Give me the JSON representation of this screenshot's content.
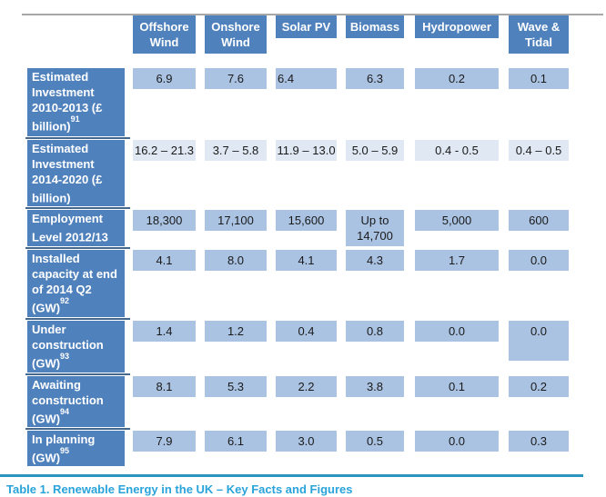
{
  "table": {
    "columns": [
      "Offshore Wind",
      "Onshore Wind",
      "Solar PV",
      "Biomass",
      "Hydropower",
      "Wave & Tidal"
    ],
    "rows": [
      {
        "label": "Estimated Investment 2010-2013 (£ billion)",
        "sup": "91",
        "values": [
          "6.9",
          "7.6",
          "6.4",
          "6.3",
          "0.2",
          "0.1"
        ]
      },
      {
        "label": "Estimated Investment 2014-2020 (£ billion)",
        "sup": "",
        "values": [
          "16.2 – 21.3",
          "3.7 – 5.8",
          "11.9 – 13.0",
          "5.0 – 5.9",
          "0.4 - 0.5",
          "0.4 – 0.5"
        ]
      },
      {
        "label": "Employment Level 2012/13",
        "sup": "",
        "values": [
          "18,300",
          "17,100",
          "15,600",
          "Up to 14,700",
          "5,000",
          "600"
        ]
      },
      {
        "label": "Installed capacity at end of 2014 Q2 (GW)",
        "sup": "92",
        "values": [
          "4.1",
          "8.0",
          "4.1",
          "4.3",
          "1.7",
          "0.0"
        ]
      },
      {
        "label": "Under construction (GW)",
        "sup": "93",
        "values": [
          "1.4",
          "1.2",
          "0.4",
          "0.8",
          "0.0",
          "0.0"
        ]
      },
      {
        "label": "Awaiting construction (GW)",
        "sup": "94",
        "values": [
          "8.1",
          "5.3",
          "2.2",
          "3.8",
          "0.1",
          "0.2"
        ]
      },
      {
        "label": "In planning (GW)",
        "sup": "95",
        "values": [
          "7.9",
          "6.1",
          "3.0",
          "0.5",
          "0.0",
          "0.3"
        ]
      }
    ]
  },
  "caption": "Table 1. Renewable Energy in the UK – Key Facts and Figures",
  "colors": {
    "header_fill": "#4f81bd",
    "cell_fill": "#abc3e3",
    "cell_fill_light": "#dfe8f3",
    "row_divider": "#44688e",
    "top_border": "#a8a8a8",
    "caption_text": "#29a3da",
    "caption_rule": "#2a95c0"
  }
}
